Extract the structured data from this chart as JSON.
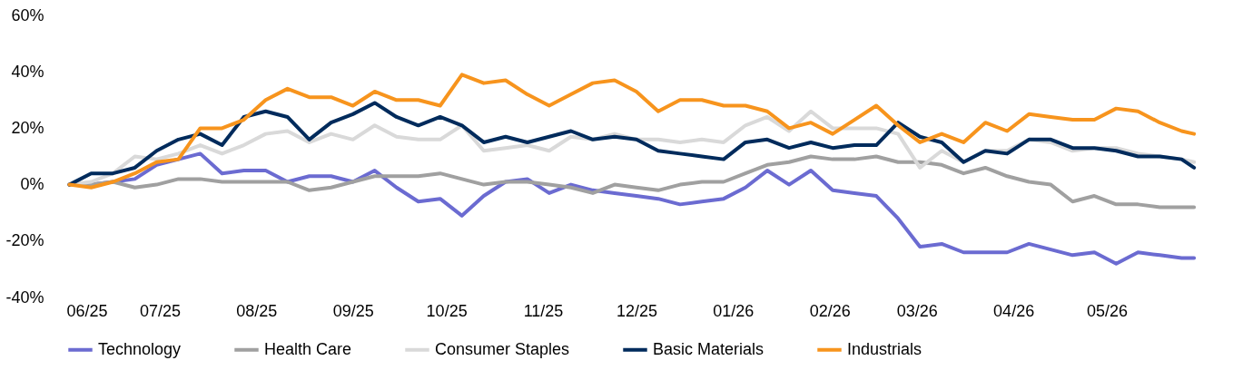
{
  "chart_data": {
    "type": "line",
    "x": [
      "2025-06-02",
      "2025-06-09",
      "2025-06-16",
      "2025-06-23",
      "2025-06-30",
      "2025-07-07",
      "2025-07-14",
      "2025-07-21",
      "2025-07-28",
      "2025-08-04",
      "2025-08-11",
      "2025-08-18",
      "2025-08-25",
      "2025-09-01",
      "2025-09-08",
      "2025-09-15",
      "2025-09-22",
      "2025-09-29",
      "2025-10-06",
      "2025-10-13",
      "2025-10-20",
      "2025-10-27",
      "2025-11-03",
      "2025-11-10",
      "2025-11-17",
      "2025-11-24",
      "2025-12-01",
      "2025-12-08",
      "2025-12-15",
      "2025-12-22",
      "2025-12-29",
      "2026-01-05",
      "2026-01-12",
      "2026-01-19",
      "2026-01-26",
      "2026-02-02",
      "2026-02-09",
      "2026-02-16",
      "2026-02-23",
      "2026-03-02",
      "2026-03-09",
      "2026-03-16",
      "2026-03-23",
      "2026-03-30",
      "2026-04-06",
      "2026-04-13",
      "2026-04-20",
      "2026-04-27",
      "2026-05-04",
      "2026-05-11",
      "2026-05-18",
      "2026-05-25",
      "2026-05-29"
    ],
    "series": [
      {
        "name": "Technology",
        "color": "#6b6bd1",
        "values": [
          0,
          0,
          1,
          2,
          7,
          9,
          11,
          4,
          5,
          5,
          1,
          3,
          3,
          1,
          5,
          -1,
          -6,
          -5,
          -11,
          -4,
          1,
          2,
          -3,
          0,
          -2,
          -3,
          -4,
          -5,
          -7,
          -6,
          -5,
          -1,
          5,
          0,
          5,
          -2,
          -3,
          -4,
          -12,
          -22,
          -21,
          -24,
          -24,
          -24,
          -21,
          -23,
          -25,
          -24,
          -28,
          -24,
          -25,
          -26,
          -26
        ]
      },
      {
        "name": "Health Care",
        "color": "#a0a0a0",
        "values": [
          0,
          0,
          1,
          -1,
          0,
          2,
          2,
          1,
          1,
          1,
          1,
          -2,
          -1,
          1,
          3,
          3,
          3,
          4,
          2,
          0,
          1,
          1,
          0,
          -1,
          -3,
          0,
          -1,
          -2,
          0,
          1,
          1,
          4,
          7,
          8,
          10,
          9,
          9,
          10,
          8,
          8,
          7,
          4,
          6,
          3,
          1,
          0,
          -6,
          -4,
          -7,
          -7,
          -8,
          -8,
          -8
        ]
      },
      {
        "name": "Consumer Staples",
        "color": "#d9d9d9",
        "values": [
          0,
          1,
          4,
          10,
          9,
          11,
          14,
          11,
          14,
          18,
          19,
          15,
          18,
          16,
          21,
          17,
          16,
          16,
          21,
          12,
          13,
          14,
          12,
          17,
          16,
          18,
          16,
          16,
          15,
          16,
          15,
          21,
          24,
          19,
          26,
          20,
          20,
          20,
          18,
          6,
          12,
          8,
          12,
          12,
          16,
          15,
          12,
          13,
          13,
          11,
          10,
          9,
          8
        ]
      },
      {
        "name": "Basic Materials",
        "color": "#002b5c",
        "values": [
          0,
          4,
          4,
          6,
          12,
          16,
          18,
          14,
          24,
          26,
          24,
          16,
          22,
          25,
          29,
          24,
          21,
          24,
          21,
          15,
          17,
          15,
          17,
          19,
          16,
          17,
          16,
          12,
          11,
          10,
          9,
          15,
          16,
          13,
          15,
          13,
          14,
          14,
          22,
          17,
          15,
          8,
          12,
          11,
          16,
          16,
          13,
          13,
          12,
          10,
          10,
          9,
          6
        ]
      },
      {
        "name": "Industrials",
        "color": "#f7941d",
        "values": [
          0,
          -1,
          1,
          4,
          8,
          9,
          20,
          20,
          23,
          30,
          34,
          31,
          31,
          28,
          33,
          30,
          30,
          28,
          39,
          36,
          37,
          32,
          28,
          32,
          36,
          37,
          33,
          26,
          30,
          30,
          28,
          28,
          26,
          20,
          22,
          18,
          23,
          28,
          21,
          15,
          18,
          15,
          22,
          19,
          25,
          24,
          23,
          23,
          27,
          26,
          22,
          19,
          18
        ]
      }
    ],
    "xlim": [
      "2025-06-01",
      "2026-05-31"
    ],
    "xticks": [
      {
        "value": "2025-06-01",
        "label": "06/25"
      },
      {
        "value": "2025-07-01",
        "label": "07/25"
      },
      {
        "value": "2025-08-01",
        "label": "08/25"
      },
      {
        "value": "2025-09-01",
        "label": "09/25"
      },
      {
        "value": "2025-10-01",
        "label": "10/25"
      },
      {
        "value": "2025-11-01",
        "label": "11/25"
      },
      {
        "value": "2025-12-01",
        "label": "12/25"
      },
      {
        "value": "2026-01-01",
        "label": "01/26"
      },
      {
        "value": "2026-02-01",
        "label": "02/26"
      },
      {
        "value": "2026-03-01",
        "label": "03/26"
      },
      {
        "value": "2026-04-01",
        "label": "04/26"
      },
      {
        "value": "2026-05-01",
        "label": "05/26"
      }
    ],
    "ylim": [
      -40,
      60
    ],
    "yticks": [
      {
        "value": -40,
        "label": "-40%"
      },
      {
        "value": -20,
        "label": "-20%"
      },
      {
        "value": 0,
        "label": "0%"
      },
      {
        "value": 20,
        "label": "20%"
      },
      {
        "value": 40,
        "label": "40%"
      },
      {
        "value": 60,
        "label": "60%"
      }
    ],
    "grid": false,
    "legend": "bottom",
    "marker": "none",
    "line_style": "solid"
  }
}
